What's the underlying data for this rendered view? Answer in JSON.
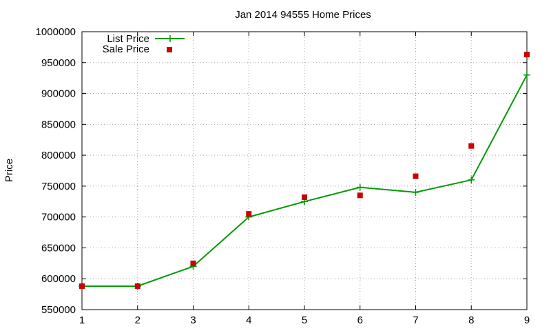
{
  "chart_data": {
    "type": "line",
    "title": "Jan 2014 94555 Home Prices",
    "xlabel": "",
    "ylabel": "Price",
    "xlim": [
      1,
      9
    ],
    "ylim": [
      550000,
      1000000
    ],
    "x_ticks": [
      1,
      2,
      3,
      4,
      5,
      6,
      7,
      8,
      9
    ],
    "y_ticks": [
      550000,
      600000,
      650000,
      700000,
      750000,
      800000,
      850000,
      900000,
      950000,
      1000000
    ],
    "grid": true,
    "legend_position": "top-left",
    "x": [
      1,
      2,
      3,
      4,
      5,
      6,
      7,
      8,
      9
    ],
    "series": [
      {
        "name": "List Price",
        "style": "line-with-plus-markers",
        "color": "#009900",
        "values": [
          588000,
          588000,
          620000,
          700000,
          725000,
          748000,
          740000,
          760000,
          930000
        ]
      },
      {
        "name": "Sale Price",
        "style": "square-markers",
        "color": "#cc0000",
        "values": [
          588000,
          588000,
          625000,
          705000,
          732000,
          735000,
          766000,
          815000,
          963000
        ]
      }
    ]
  }
}
